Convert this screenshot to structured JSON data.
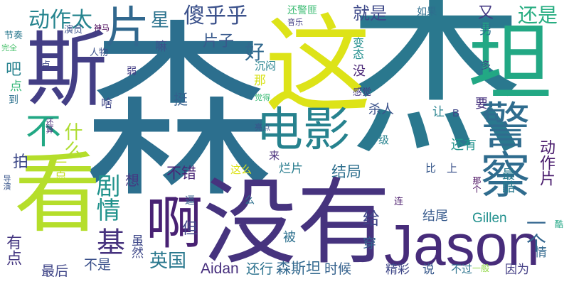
{
  "words": [
    {
      "text": "杰",
      "color": "#2a788e"
    },
    {
      "text": "森",
      "color": "#2c6f8e"
    },
    {
      "text": "这",
      "color": "#dde318"
    },
    {
      "text": "斯",
      "color": "#433e85"
    },
    {
      "text": "坦",
      "color": "#22a884"
    },
    {
      "text": "没有",
      "color": "#46337e"
    },
    {
      "text": "看",
      "color": "#b5de2b"
    },
    {
      "text": "电影",
      "color": "#26828e"
    },
    {
      "text": "警察",
      "color": "#2f6c8e"
    },
    {
      "text": "Jason",
      "color": "#472c7a"
    },
    {
      "text": "啊",
      "color": "#482173"
    },
    {
      "text": "不",
      "color": "#22a884"
    },
    {
      "text": "片",
      "color": "#31688e"
    },
    {
      "text": "傻乎乎",
      "color": "#3b518b"
    },
    {
      "text": "动作太",
      "color": "#25848e"
    },
    {
      "text": "剧情",
      "color": "#20928c"
    },
    {
      "text": "什么",
      "color": "#addc30"
    },
    {
      "text": "星",
      "color": "#2c738e"
    },
    {
      "text": "好",
      "color": "#31688e"
    },
    {
      "text": "片子",
      "color": "#38598c"
    },
    {
      "text": "就是",
      "color": "#3e4989"
    },
    {
      "text": "还是",
      "color": "#27ad81"
    },
    {
      "text": "又",
      "color": "#443983"
    },
    {
      "text": "男",
      "color": "#2d708e"
    },
    {
      "text": "吧",
      "color": "#26828e"
    },
    {
      "text": "基",
      "color": "#46327e"
    },
    {
      "text": "英国",
      "color": "#2a788e"
    },
    {
      "text": "最后",
      "color": "#404688"
    },
    {
      "text": "不是",
      "color": "#3b518b"
    },
    {
      "text": "Aidan",
      "color": "#472f7d"
    },
    {
      "text": "还行",
      "color": "#2c728e"
    },
    {
      "text": "森斯坦",
      "color": "#31688e"
    },
    {
      "text": "时候",
      "color": "#34618d"
    },
    {
      "text": "不错",
      "color": "#482576"
    },
    {
      "text": "结局",
      "color": "#2e6f8e"
    },
    {
      "text": "烂片",
      "color": "#287c8e"
    },
    {
      "text": "拍",
      "color": "#3e4a89"
    },
    {
      "text": "想",
      "color": "#453882"
    },
    {
      "text": "但",
      "color": "#404688"
    },
    {
      "text": "结尾",
      "color": "#375a8c"
    },
    {
      "text": "给",
      "color": "#3f4788"
    },
    {
      "text": "穿",
      "color": "#34618d"
    },
    {
      "text": "被",
      "color": "#2d708e"
    },
    {
      "text": "Gillen",
      "color": "#21908d"
    },
    {
      "text": "一个",
      "color": "#32658e"
    },
    {
      "text": "还有",
      "color": "#20938c"
    },
    {
      "text": "让",
      "color": "#26828e"
    },
    {
      "text": "要",
      "color": "#46327e"
    },
    {
      "text": "杀人",
      "color": "#3b528b"
    },
    {
      "text": "没",
      "color": "#482475"
    },
    {
      "text": "那",
      "color": "#d8e219"
    },
    {
      "text": "挺",
      "color": "#34608d"
    },
    {
      "text": "有点",
      "color": "#453781"
    },
    {
      "text": "最酷",
      "color": "#29798e"
    },
    {
      "text": "动作片",
      "color": "#481a6c"
    },
    {
      "text": "情",
      "color": "#31688e"
    },
    {
      "text": "精彩",
      "color": "#3f4788"
    },
    {
      "text": "说",
      "color": "#38598c"
    },
    {
      "text": "不过",
      "color": "#2c738e"
    },
    {
      "text": "一般",
      "color": "#8fd744"
    },
    {
      "text": "因为",
      "color": "#433e85"
    },
    {
      "text": "比",
      "color": "#38598c"
    },
    {
      "text": "上",
      "color": "#3b528b"
    },
    {
      "text": "级",
      "color": "#26828e"
    },
    {
      "text": "来",
      "color": "#472c7a"
    },
    {
      "text": "这么",
      "color": "#dde318"
    },
    {
      "text": "点",
      "color": "#35b779"
    },
    {
      "text": "一点",
      "color": "#c2df23"
    },
    {
      "text": "虽然",
      "color": "#3f4889"
    },
    {
      "text": "还警匪",
      "color": "#3dbc74"
    },
    {
      "text": "如果",
      "color": "#2e6e8e"
    },
    {
      "text": "音乐",
      "color": "#433e85"
    },
    {
      "text": "变态",
      "color": "#218e8d"
    },
    {
      "text": "沉闷",
      "color": "#26828e"
    },
    {
      "text": "嘛",
      "color": "#3b518b"
    },
    {
      "text": "人物",
      "color": "#3b518b"
    },
    {
      "text": "弱",
      "color": "#433e85"
    },
    {
      "text": "啥",
      "color": "#3f4788"
    },
    {
      "text": "神马",
      "color": "#440154"
    },
    {
      "text": "演员",
      "color": "#3b528b"
    },
    {
      "text": "节奏",
      "color": "#2a788e"
    },
    {
      "text": "完全",
      "color": "#4ac16d"
    },
    {
      "text": "点",
      "color": "#3e4989"
    },
    {
      "text": "到",
      "color": "#2d718e"
    },
    {
      "text": "还算",
      "color": "#472a7a"
    },
    {
      "text": "导演",
      "color": "#39568c"
    },
    {
      "text": "觉得",
      "color": "#3bbb75"
    },
    {
      "text": "亮点",
      "color": "#3b528b"
    },
    {
      "text": "感觉",
      "color": "#453882"
    },
    {
      "text": "多",
      "color": "#3f4788"
    },
    {
      "text": "B",
      "color": "#404688"
    },
    {
      "text": "那个",
      "color": "#460a5d"
    },
    {
      "text": "连",
      "color": "#48186a"
    },
    {
      "text": "么",
      "color": "#2d708e"
    },
    {
      "text": "逼",
      "color": "#34608d"
    },
    {
      "text": "酷",
      "color": "#22a785"
    }
  ]
}
